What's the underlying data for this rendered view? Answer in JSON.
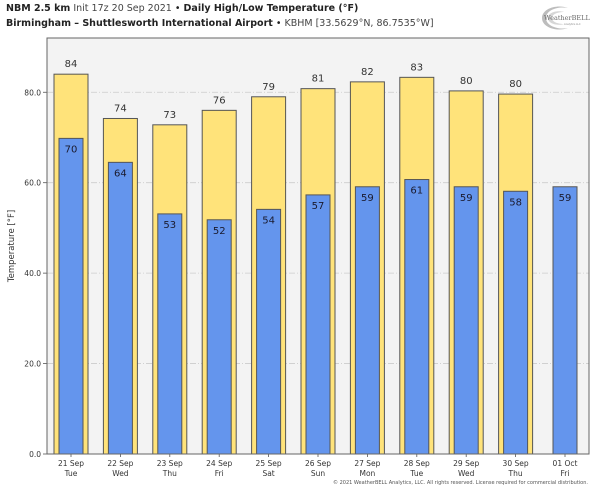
{
  "header": {
    "model": "NBM 2.5 km",
    "init": "Init 17z 20 Sep 2021",
    "separator": "•",
    "product": "Daily High/Low Temperature (°F)",
    "station_name": "Birmingham – Shuttlesworth International Airport",
    "station_info": "KBHM [33.5629°N, 86.7535°W]"
  },
  "logo": {
    "text": "WeatherBELL",
    "subtext": "Analytics LLC"
  },
  "copyright": "© 2021 WeatherBELL Analytics, LLC. All rights reserved. License required for commercial distribution.",
  "colors": {
    "high_bar": "#FFE37A",
    "low_bar": "#6495ED",
    "bar_edge": "#555555",
    "plot_bg": "#F3F3F3",
    "grid": "#CCCCCC"
  },
  "chart_data": {
    "type": "bar",
    "title": "Daily High/Low Temperature (°F)",
    "xlabel": "",
    "ylabel": "Temperature [°F]",
    "ylim": [
      0,
      92
    ],
    "yticks": [
      0,
      20,
      40,
      60,
      80
    ],
    "ytick_labels": [
      "0.0",
      "20.0",
      "40.0",
      "60.0",
      "80.0"
    ],
    "grid": true,
    "categories": [
      {
        "date": "21 Sep",
        "day": "Tue"
      },
      {
        "date": "22 Sep",
        "day": "Wed"
      },
      {
        "date": "23 Sep",
        "day": "Thu"
      },
      {
        "date": "24 Sep",
        "day": "Fri"
      },
      {
        "date": "25 Sep",
        "day": "Sat"
      },
      {
        "date": "26 Sep",
        "day": "Sun"
      },
      {
        "date": "27 Sep",
        "day": "Mon"
      },
      {
        "date": "28 Sep",
        "day": "Tue"
      },
      {
        "date": "29 Sep",
        "day": "Wed"
      },
      {
        "date": "30 Sep",
        "day": "Thu"
      },
      {
        "date": "01 Oct",
        "day": "Fri"
      }
    ],
    "series": [
      {
        "name": "High",
        "values": [
          84,
          74,
          73,
          76,
          79,
          81,
          82,
          83,
          80,
          80,
          null
        ],
        "plot_values": [
          84,
          74.2,
          72.8,
          76,
          79,
          80.8,
          82.3,
          83.3,
          80.3,
          79.6,
          null
        ],
        "labels": [
          "84",
          "74",
          "73",
          "76",
          "79",
          "81",
          "82",
          "83",
          "80",
          "80",
          ""
        ]
      },
      {
        "name": "Low",
        "values": [
          70,
          64,
          53,
          52,
          54,
          57,
          59,
          61,
          59,
          58,
          59
        ],
        "plot_values": [
          69.8,
          64.5,
          53.1,
          51.8,
          54.1,
          57.3,
          59.1,
          60.7,
          59.1,
          58.1,
          59.1
        ],
        "labels": [
          "70",
          "64",
          "53",
          "52",
          "54",
          "57",
          "59",
          "61",
          "59",
          "58",
          "59"
        ]
      }
    ]
  }
}
